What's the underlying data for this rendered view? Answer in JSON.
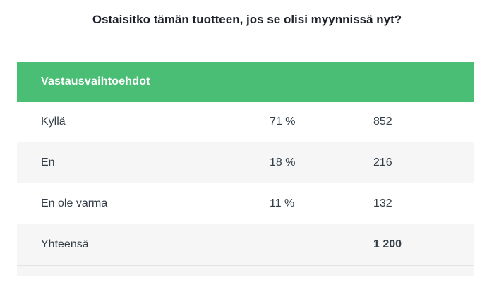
{
  "title": "Ostaisitko tämän tuotteen, jos se olisi myynnissä nyt?",
  "header": {
    "column_label": "Vastausvaihtoehdot"
  },
  "rows": [
    {
      "label": "Kyllä",
      "percent": "71 %",
      "count": "852"
    },
    {
      "label": "En",
      "percent": "18 %",
      "count": "216"
    },
    {
      "label": "En ole varma",
      "percent": "11 %",
      "count": "132"
    }
  ],
  "total": {
    "label": "Yhteensä",
    "count": "1 200"
  },
  "colors": {
    "header_bg": "#49be74",
    "alt_row_bg": "#f6f6f6",
    "text": "#333e48"
  },
  "chart_data": {
    "type": "table",
    "title": "Ostaisitko tämän tuotteen, jos se olisi myynnissä nyt?",
    "columns": [
      "Vastausvaihtoehdot",
      "",
      ""
    ],
    "categories": [
      "Kyllä",
      "En",
      "En ole varma"
    ],
    "series": [
      {
        "values": [
          71,
          18,
          11
        ]
      },
      {
        "values": [
          852,
          216,
          132
        ]
      }
    ],
    "total": 1200
  }
}
